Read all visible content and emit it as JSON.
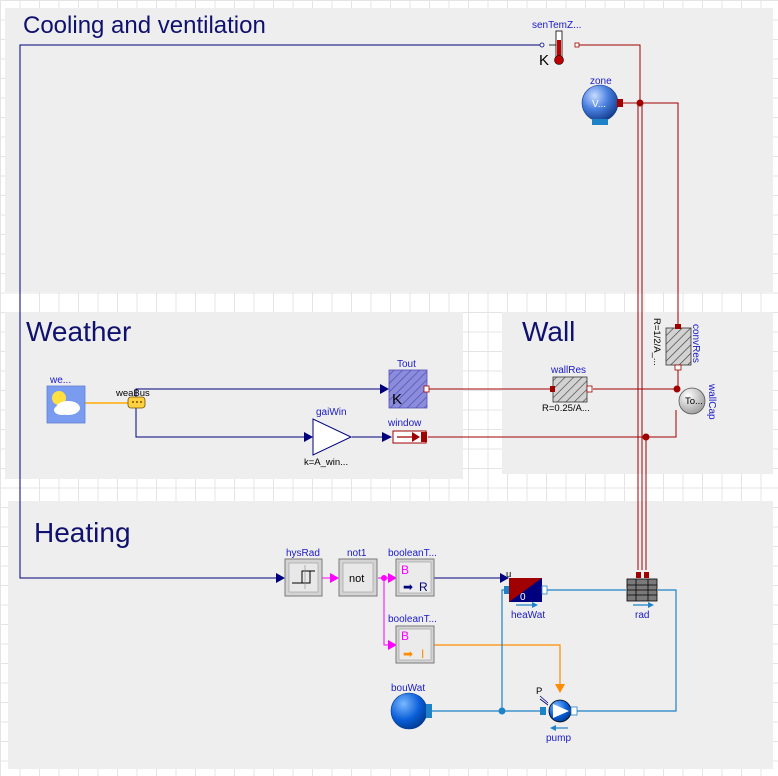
{
  "regions": {
    "cooling": "Cooling and ventilation",
    "weather": "Weather",
    "wall": "Wall",
    "heating": "Heating"
  },
  "components": {
    "senTemZone": "senTemZ...",
    "senTemUnit": "K",
    "zone": "zone",
    "zoneInner": "V...",
    "weaData": "we...",
    "weaBus": "weaBus",
    "tout": "Tout",
    "toutUnit": "K",
    "gaiWin": "gaiWin",
    "gaiWinParam": "k=A_win...",
    "window": "window",
    "wallRes": "wallRes",
    "wallResParam": "R=0.25/A...",
    "convRes": "convRes",
    "convResParam": "R=1/2/A_...",
    "wallCap": "wallCap",
    "wallCapInner": "To...",
    "hysRad": "hysRad",
    "not1": "not1",
    "not1Text": "not",
    "boolean1": "booleanT...",
    "boolean2": "booleanT...",
    "boolB1": "B",
    "boolR": "R",
    "boolB2": "B",
    "boolI": "I",
    "heaWat": "heaWat",
    "heaWatU": "u",
    "heaWatZero": "0",
    "rad": "rad",
    "bouWat": "bouWat",
    "pump": "pump",
    "pumpP": "P"
  },
  "colors": {
    "signalLine": "#00007f",
    "thermalLine": "#a00000",
    "fluidLine": "#1e82c8",
    "boolLine": "#ff00ff",
    "weatherBus": "#ffaa00",
    "pumpSignal": "#ff8c00"
  }
}
